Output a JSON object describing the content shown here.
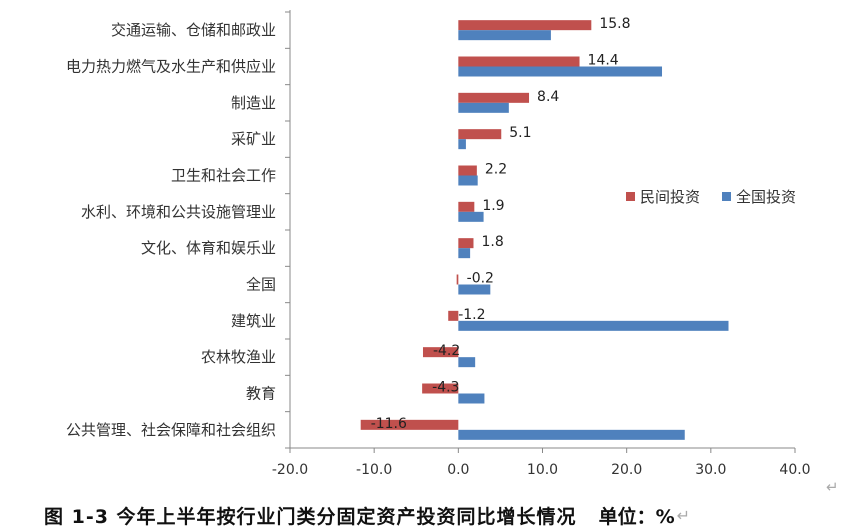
{
  "chart_data": {
    "type": "bar",
    "orientation": "horizontal",
    "categories": [
      "交通运输、仓储和邮政业",
      "电力热力燃气及水生产和供应业",
      "制造业",
      "采矿业",
      "卫生和社会工作",
      "水利、环境和公共设施管理业",
      "文化、体育和娱乐业",
      "全国",
      "建筑业",
      "农林牧渔业",
      "教育",
      "公共管理、社会保障和社会组织"
    ],
    "series": [
      {
        "name": "民间投资",
        "color": "#c0504d",
        "values": [
          15.8,
          14.4,
          8.4,
          5.1,
          2.2,
          1.9,
          1.8,
          -0.2,
          -1.2,
          -4.2,
          -4.3,
          -11.6
        ],
        "labels": [
          "15.8",
          "14.4",
          "8.4",
          "5.1",
          "2.2",
          "1.9",
          "1.8",
          "-0.2",
          "-1.2",
          "-4.2",
          "-4.3",
          "-11.6"
        ]
      },
      {
        "name": "全国投资",
        "color": "#4f81bd",
        "values": [
          11.0,
          24.2,
          6.0,
          0.9,
          2.3,
          3.0,
          1.4,
          3.8,
          32.1,
          2.0,
          3.1,
          26.9
        ]
      }
    ],
    "xlim": [
      -20,
      40
    ],
    "xticks": [
      "-20.0",
      "-10.0",
      "0.0",
      "10.0",
      "20.0",
      "30.0",
      "40.0"
    ],
    "legend_position": "right",
    "grid": false
  },
  "caption": {
    "title": "图 1-3 今年上半年按行业门类分固定资产投资同比增长情况",
    "unit": "单位：%",
    "return_mark": "↵"
  }
}
